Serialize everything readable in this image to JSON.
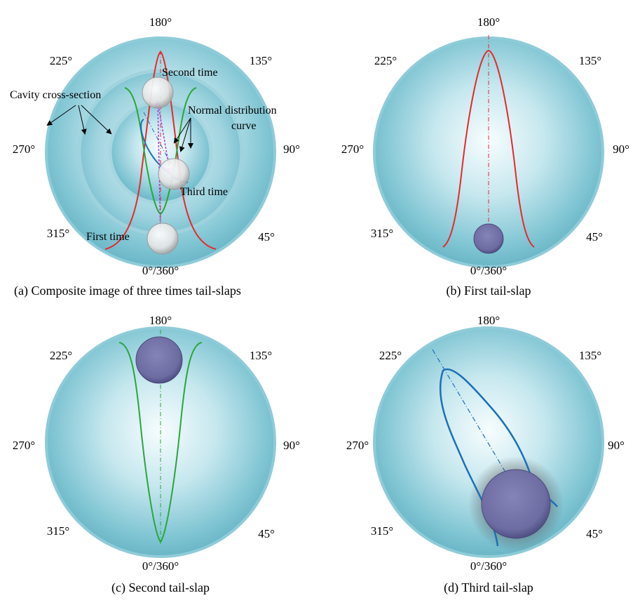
{
  "panels": [
    {
      "caption": "(a) Composite image of three times tail-slaps",
      "angles": {
        "a180": "180°",
        "a225": "225°",
        "a135": "135°",
        "a270": "270°",
        "a90": "90°",
        "a315": "315°",
        "a45": "45°",
        "a0": "0°/360°"
      },
      "annotations": {
        "second_time": "Second time",
        "third_time": "Third time",
        "first_time": "First time",
        "cavity_cross_section": "Cavity cross-section",
        "normal_distribution_line1": "Normal distribution",
        "normal_distribution_line2": "curve"
      }
    },
    {
      "caption": "(b) First tail-slap",
      "angles": {
        "a180": "180°",
        "a225": "225°",
        "a135": "135°",
        "a270": "270°",
        "a90": "90°",
        "a315": "315°",
        "a45": "45°",
        "a0": "0°/360°"
      }
    },
    {
      "caption": "(c) Second tail-slap",
      "angles": {
        "a180": "180°",
        "a225": "225°",
        "a135": "135°",
        "a270": "270°",
        "a90": "90°",
        "a315": "315°",
        "a45": "45°",
        "a0": "0°/360°"
      }
    },
    {
      "caption": "(d) Third tail-slap",
      "angles": {
        "a180": "180°",
        "a225": "225°",
        "a135": "135°",
        "a270": "270°",
        "a90": "90°",
        "a315": "315°",
        "a45": "45°",
        "a0": "0°/360°"
      }
    }
  ],
  "colors": {
    "first_curve": "#e8282c",
    "second_curve": "#2aa63a",
    "third_curve": "#1e6fb8",
    "trajectory": "#b03ad8",
    "body": "#6f6ea6",
    "cavity_light": "#f3fbfd",
    "cavity_dark": "#6fbccd"
  }
}
